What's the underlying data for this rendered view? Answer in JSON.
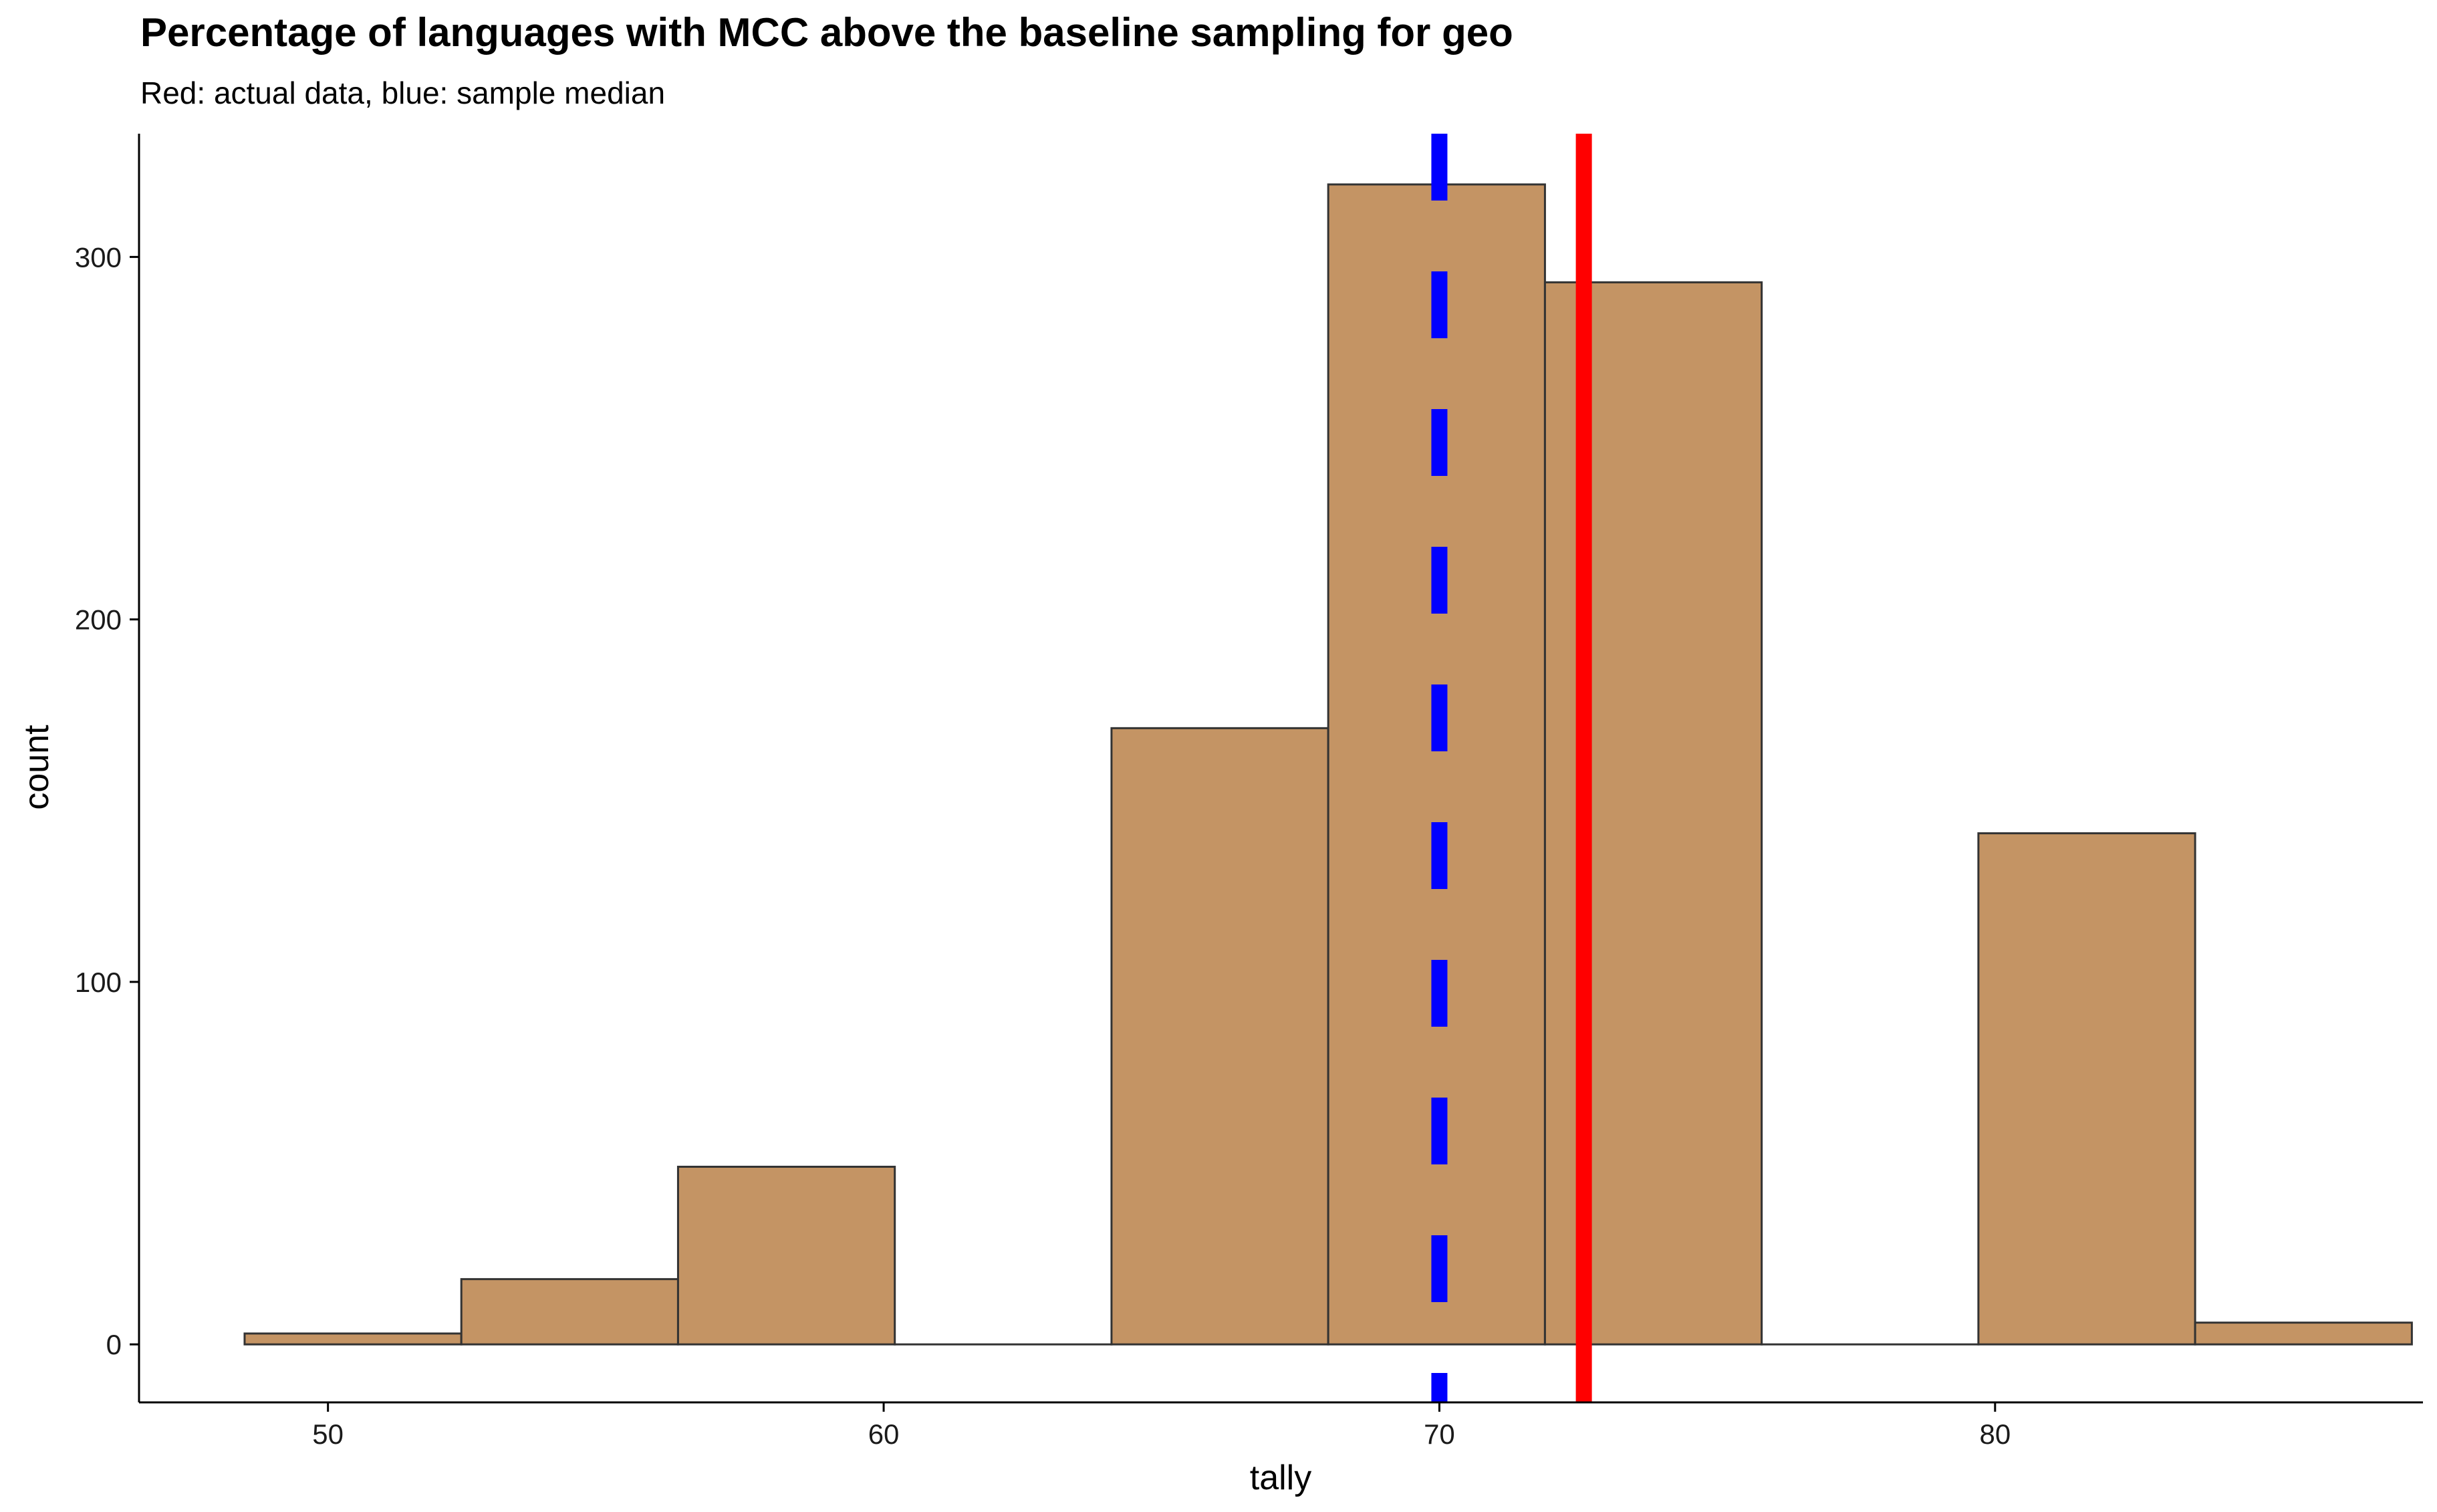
{
  "chart_data": {
    "type": "bar",
    "title": "Percentage of languages with MCC above the baseline sampling for geo",
    "subtitle": "Red: actual data, blue: sample median",
    "xlabel": "tally",
    "ylabel": "count",
    "xlim": [
      46.6,
      87.7
    ],
    "ylim": [
      -16,
      334
    ],
    "x_ticks": [
      50,
      60,
      70,
      80
    ],
    "y_ticks": [
      0,
      100,
      200,
      300
    ],
    "bin_width": 3.9,
    "bins": [
      {
        "x_start": 48.5,
        "x_end": 52.4,
        "count": 3
      },
      {
        "x_start": 52.4,
        "x_end": 56.3,
        "count": 18
      },
      {
        "x_start": 56.3,
        "x_end": 60.2,
        "count": 49
      },
      {
        "x_start": 60.2,
        "x_end": 64.1,
        "count": 0
      },
      {
        "x_start": 64.1,
        "x_end": 68.0,
        "count": 170
      },
      {
        "x_start": 68.0,
        "x_end": 71.9,
        "count": 320
      },
      {
        "x_start": 71.9,
        "x_end": 75.8,
        "count": 293
      },
      {
        "x_start": 75.8,
        "x_end": 79.7,
        "count": 0
      },
      {
        "x_start": 79.7,
        "x_end": 83.6,
        "count": 141
      },
      {
        "x_start": 83.6,
        "x_end": 87.5,
        "count": 6
      }
    ],
    "reference_lines": [
      {
        "label": "actual data",
        "x": 72.6,
        "color": "#ff0000",
        "style": "solid"
      },
      {
        "label": "sample median",
        "x": 70.0,
        "color": "#0000ff",
        "style": "dashed"
      }
    ],
    "bar_fill": "#c49464",
    "bar_stroke": "#333333",
    "grid": false,
    "legend": "none"
  }
}
